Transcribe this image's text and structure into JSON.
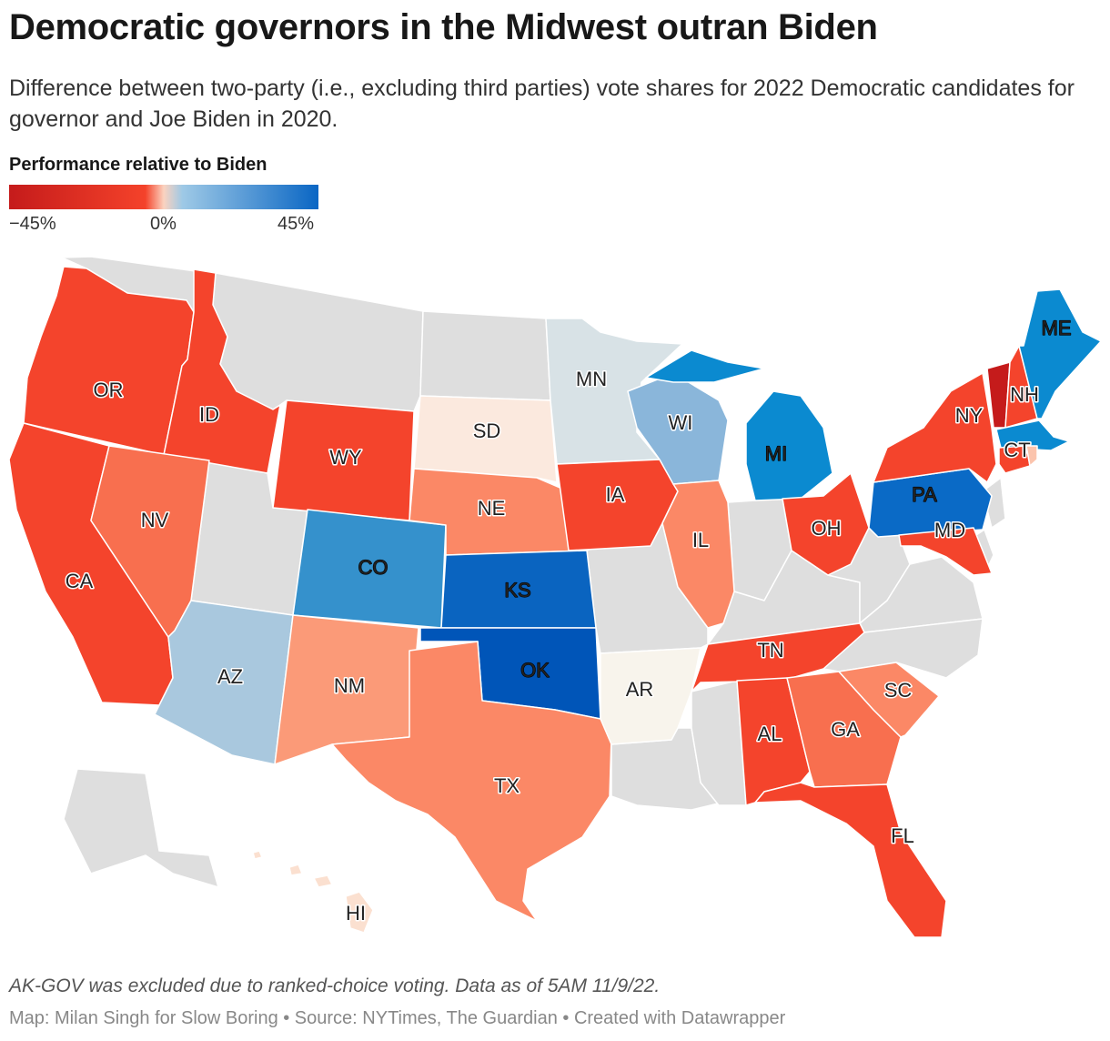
{
  "title": "Democratic governors in the Midwest outran Biden",
  "subtitle": "Difference between two-party (i.e., excluding third parties) vote shares for 2022 Democratic candidates for governor and Joe Biden in 2020.",
  "legend": {
    "title": "Performance relative to Biden",
    "min_label": "−45%",
    "mid_label": "0%",
    "max_label": "45%",
    "colors": [
      "#c51b1b",
      "#f4422a",
      "#fbd2bf",
      "#9ec9e6",
      "#0a66c4"
    ]
  },
  "colors": {
    "no_data": "#dedede",
    "label_halo_light": "#ffffff",
    "label_halo_dark": "#000000"
  },
  "states": [
    {
      "abbr": "OR",
      "color": "#f4442c",
      "shown_label": true
    },
    {
      "abbr": "CA",
      "color": "#f4442c",
      "shown_label": true
    },
    {
      "abbr": "ID",
      "color": "#f4442c",
      "shown_label": true
    },
    {
      "abbr": "NV",
      "color": "#f86f4f",
      "shown_label": true
    },
    {
      "abbr": "AZ",
      "color": "#a9c8de",
      "shown_label": true
    },
    {
      "abbr": "WY",
      "color": "#f4442c",
      "shown_label": true
    },
    {
      "abbr": "CO",
      "color": "#3591cc",
      "shown_label": true
    },
    {
      "abbr": "NM",
      "color": "#fb9a78",
      "shown_label": true
    },
    {
      "abbr": "SD",
      "color": "#fbe9de",
      "shown_label": true
    },
    {
      "abbr": "NE",
      "color": "#fb8866",
      "shown_label": true
    },
    {
      "abbr": "KS",
      "color": "#0a64c0",
      "shown_label": true
    },
    {
      "abbr": "OK",
      "color": "#0055b8",
      "shown_label": true
    },
    {
      "abbr": "TX",
      "color": "#fb8866",
      "shown_label": true
    },
    {
      "abbr": "MN",
      "color": "#d8e2e6",
      "shown_label": true
    },
    {
      "abbr": "IA",
      "color": "#f4442c",
      "shown_label": true
    },
    {
      "abbr": "AR",
      "color": "#f8f4ec",
      "shown_label": true
    },
    {
      "abbr": "WI",
      "color": "#8ab6da",
      "shown_label": true
    },
    {
      "abbr": "IL",
      "color": "#fb8866",
      "shown_label": true
    },
    {
      "abbr": "MI",
      "color": "#0b8ad0",
      "shown_label": true
    },
    {
      "abbr": "OH",
      "color": "#f4442c",
      "shown_label": true
    },
    {
      "abbr": "TN",
      "color": "#f4442c",
      "shown_label": true
    },
    {
      "abbr": "AL",
      "color": "#f4442c",
      "shown_label": true
    },
    {
      "abbr": "GA",
      "color": "#f86f4f",
      "shown_label": true
    },
    {
      "abbr": "SC",
      "color": "#fb8866",
      "shown_label": true
    },
    {
      "abbr": "FL",
      "color": "#f4442c",
      "shown_label": true
    },
    {
      "abbr": "PA",
      "color": "#0a6ac6",
      "shown_label": true
    },
    {
      "abbr": "MD",
      "color": "#f4442c",
      "shown_label": true
    },
    {
      "abbr": "NY",
      "color": "#f4442c",
      "shown_label": true
    },
    {
      "abbr": "VT",
      "color": "#c51b1b",
      "shown_label": false
    },
    {
      "abbr": "NH",
      "color": "#f4442c",
      "shown_label": true
    },
    {
      "abbr": "ME",
      "color": "#0b8ad0",
      "shown_label": true
    },
    {
      "abbr": "MA",
      "color": "#0b8ad0",
      "shown_label": false
    },
    {
      "abbr": "CT",
      "color": "#f4442c",
      "shown_label": true
    },
    {
      "abbr": "RI",
      "color": "#fbc4ad",
      "shown_label": false
    },
    {
      "abbr": "HI",
      "color": "#fbe0d0",
      "shown_label": true
    }
  ],
  "footer": {
    "note": "AK-GOV was excluded due to ranked-choice voting. Data as of 5AM 11/9/22.",
    "credit": "Map: Milan Singh for Slow Boring • Source: NYTimes, The Guardian • Created with Datawrapper"
  }
}
